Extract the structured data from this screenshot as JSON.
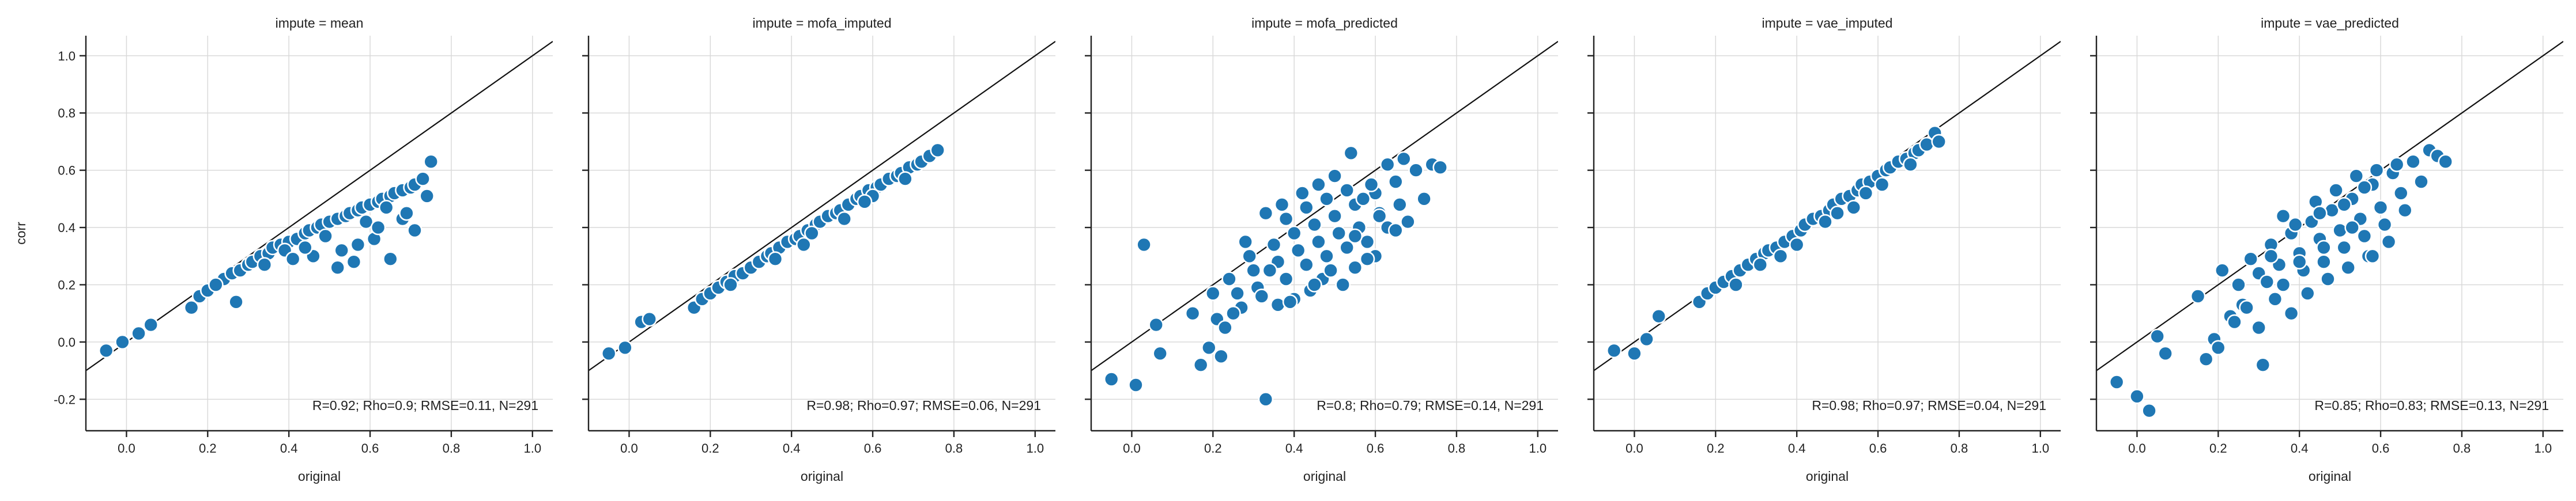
{
  "chart_data": [
    {
      "type": "scatter",
      "title": "impute = mean",
      "xlabel": "original",
      "ylabel": "corr",
      "xlim": [
        -0.1,
        1.05
      ],
      "ylim": [
        -0.31,
        1.07
      ],
      "xticks": [
        "0.0",
        "0.2",
        "0.4",
        "0.6",
        "0.8",
        "1.0"
      ],
      "yticks": [
        "-0.2",
        "0.0",
        "0.2",
        "0.4",
        "0.6",
        "0.8",
        "1.0"
      ],
      "grid": true,
      "identity_line": true,
      "annotation": "R=0.92; Rho=0.9; RMSE=0.11, N=291",
      "series": [
        {
          "color": "#1f77b4",
          "x": [
            -0.05,
            -0.01,
            0.03,
            0.06,
            0.16,
            0.18,
            0.2,
            0.22,
            0.24,
            0.26,
            0.28,
            0.3,
            0.31,
            0.33,
            0.35,
            0.36,
            0.38,
            0.4,
            0.42,
            0.44,
            0.45,
            0.47,
            0.48,
            0.5,
            0.52,
            0.54,
            0.55,
            0.57,
            0.58,
            0.6,
            0.62,
            0.63,
            0.65,
            0.66,
            0.68,
            0.7,
            0.71,
            0.73,
            0.75,
            0.27,
            0.46,
            0.53,
            0.56,
            0.61,
            0.65,
            0.71,
            0.22,
            0.39,
            0.49,
            0.59,
            0.64,
            0.68,
            0.74,
            0.41,
            0.52,
            0.57,
            0.62,
            0.69,
            0.34,
            0.44
          ],
          "y": [
            -0.03,
            0.0,
            0.03,
            0.06,
            0.12,
            0.16,
            0.18,
            0.2,
            0.22,
            0.24,
            0.25,
            0.27,
            0.28,
            0.3,
            0.31,
            0.33,
            0.34,
            0.35,
            0.36,
            0.38,
            0.39,
            0.4,
            0.41,
            0.42,
            0.43,
            0.44,
            0.45,
            0.46,
            0.47,
            0.48,
            0.49,
            0.5,
            0.51,
            0.52,
            0.53,
            0.54,
            0.55,
            0.57,
            0.63,
            0.14,
            0.3,
            0.32,
            0.28,
            0.36,
            0.29,
            0.39,
            0.2,
            0.32,
            0.37,
            0.42,
            0.47,
            0.43,
            0.51,
            0.29,
            0.26,
            0.34,
            0.4,
            0.45,
            0.27,
            0.33
          ]
        }
      ]
    },
    {
      "type": "scatter",
      "title": "impute = mofa_imputed",
      "xlabel": "original",
      "ylabel": "",
      "xlim": [
        -0.1,
        1.05
      ],
      "ylim": [
        -0.31,
        1.07
      ],
      "xticks": [
        "0.0",
        "0.2",
        "0.4",
        "0.6",
        "0.8",
        "1.0"
      ],
      "grid": true,
      "identity_line": true,
      "annotation": "R=0.98; Rho=0.97; RMSE=0.06, N=291",
      "series": [
        {
          "color": "#1f77b4",
          "x": [
            -0.05,
            -0.01,
            0.03,
            0.05,
            0.16,
            0.18,
            0.2,
            0.22,
            0.24,
            0.26,
            0.28,
            0.3,
            0.32,
            0.34,
            0.35,
            0.37,
            0.39,
            0.41,
            0.42,
            0.44,
            0.46,
            0.47,
            0.49,
            0.51,
            0.52,
            0.54,
            0.56,
            0.57,
            0.59,
            0.61,
            0.62,
            0.64,
            0.66,
            0.67,
            0.69,
            0.71,
            0.72,
            0.74,
            0.76,
            0.25,
            0.36,
            0.45,
            0.53,
            0.6,
            0.68,
            0.43,
            0.58
          ],
          "y": [
            -0.04,
            -0.02,
            0.07,
            0.08,
            0.12,
            0.15,
            0.17,
            0.19,
            0.21,
            0.23,
            0.24,
            0.26,
            0.28,
            0.3,
            0.31,
            0.33,
            0.35,
            0.36,
            0.37,
            0.39,
            0.41,
            0.42,
            0.44,
            0.45,
            0.46,
            0.48,
            0.5,
            0.51,
            0.53,
            0.54,
            0.55,
            0.57,
            0.58,
            0.59,
            0.61,
            0.62,
            0.63,
            0.65,
            0.67,
            0.2,
            0.29,
            0.38,
            0.43,
            0.51,
            0.57,
            0.34,
            0.49
          ]
        }
      ]
    },
    {
      "type": "scatter",
      "title": "impute = mofa_predicted",
      "xlabel": "original",
      "ylabel": "",
      "xlim": [
        -0.1,
        1.05
      ],
      "ylim": [
        -0.31,
        1.07
      ],
      "xticks": [
        "0.0",
        "0.2",
        "0.4",
        "0.6",
        "0.8",
        "1.0"
      ],
      "grid": true,
      "identity_line": true,
      "annotation": "R=0.8; Rho=0.79; RMSE=0.14, N=291",
      "series": [
        {
          "color": "#1f77b4",
          "x": [
            -0.05,
            0.01,
            0.03,
            0.06,
            0.07,
            0.15,
            0.17,
            0.19,
            0.2,
            0.21,
            0.22,
            0.24,
            0.26,
            0.27,
            0.29,
            0.3,
            0.31,
            0.33,
            0.35,
            0.36,
            0.38,
            0.4,
            0.41,
            0.43,
            0.45,
            0.46,
            0.48,
            0.5,
            0.51,
            0.53,
            0.55,
            0.56,
            0.58,
            0.6,
            0.61,
            0.63,
            0.65,
            0.66,
            0.68,
            0.7,
            0.72,
            0.74,
            0.76,
            0.33,
            0.36,
            0.4,
            0.44,
            0.47,
            0.52,
            0.55,
            0.6,
            0.63,
            0.67,
            0.37,
            0.42,
            0.46,
            0.5,
            0.54,
            0.57,
            0.61,
            0.65,
            0.28,
            0.32,
            0.38,
            0.43,
            0.48,
            0.53,
            0.58,
            0.25,
            0.34,
            0.39,
            0.45,
            0.49,
            0.55,
            0.59,
            0.23
          ],
          "y": [
            -0.13,
            -0.15,
            0.34,
            0.06,
            -0.04,
            0.1,
            -0.08,
            -0.02,
            0.17,
            0.08,
            -0.05,
            0.22,
            0.17,
            0.12,
            0.3,
            0.25,
            0.19,
            -0.2,
            0.34,
            0.28,
            0.22,
            0.38,
            0.32,
            0.27,
            0.41,
            0.35,
            0.3,
            0.44,
            0.38,
            0.33,
            0.48,
            0.4,
            0.35,
            0.52,
            0.45,
            0.4,
            0.56,
            0.48,
            0.42,
            0.6,
            0.5,
            0.62,
            0.61,
            0.45,
            0.13,
            0.15,
            0.18,
            0.22,
            0.2,
            0.26,
            0.3,
            0.62,
            0.64,
            0.48,
            0.52,
            0.55,
            0.58,
            0.66,
            0.5,
            0.44,
            0.39,
            0.35,
            0.16,
            0.43,
            0.47,
            0.5,
            0.53,
            0.29,
            0.1,
            0.25,
            0.14,
            0.2,
            0.25,
            0.37,
            0.55,
            0.05
          ]
        }
      ]
    },
    {
      "type": "scatter",
      "title": "impute = vae_imputed",
      "xlabel": "original",
      "ylabel": "",
      "xlim": [
        -0.1,
        1.05
      ],
      "ylim": [
        -0.31,
        1.07
      ],
      "xticks": [
        "0.0",
        "0.2",
        "0.4",
        "0.6",
        "0.8",
        "1.0"
      ],
      "grid": true,
      "identity_line": true,
      "annotation": "R=0.98; Rho=0.97; RMSE=0.04, N=291",
      "series": [
        {
          "color": "#1f77b4",
          "x": [
            -0.05,
            0.0,
            0.03,
            0.06,
            0.16,
            0.18,
            0.2,
            0.22,
            0.24,
            0.26,
            0.28,
            0.3,
            0.32,
            0.33,
            0.35,
            0.37,
            0.39,
            0.41,
            0.42,
            0.44,
            0.46,
            0.48,
            0.49,
            0.51,
            0.53,
            0.55,
            0.56,
            0.58,
            0.6,
            0.62,
            0.63,
            0.65,
            0.67,
            0.69,
            0.7,
            0.72,
            0.74,
            0.75,
            0.25,
            0.31,
            0.4,
            0.47,
            0.54,
            0.61,
            0.68,
            0.36,
            0.5,
            0.57
          ],
          "y": [
            -0.03,
            -0.04,
            0.01,
            0.09,
            0.14,
            0.17,
            0.19,
            0.21,
            0.23,
            0.25,
            0.27,
            0.29,
            0.31,
            0.32,
            0.33,
            0.35,
            0.37,
            0.39,
            0.41,
            0.43,
            0.44,
            0.46,
            0.48,
            0.5,
            0.51,
            0.53,
            0.55,
            0.56,
            0.58,
            0.6,
            0.61,
            0.63,
            0.64,
            0.66,
            0.67,
            0.69,
            0.73,
            0.7,
            0.2,
            0.27,
            0.34,
            0.42,
            0.47,
            0.55,
            0.62,
            0.3,
            0.45,
            0.52
          ]
        }
      ]
    },
    {
      "type": "scatter",
      "title": "impute = vae_predicted",
      "xlabel": "original",
      "ylabel": "",
      "xlim": [
        -0.1,
        1.05
      ],
      "ylim": [
        -0.31,
        1.07
      ],
      "xticks": [
        "0.0",
        "0.2",
        "0.4",
        "0.6",
        "0.8",
        "1.0"
      ],
      "grid": true,
      "identity_line": true,
      "annotation": "R=0.85; Rho=0.83; RMSE=0.13, N=291",
      "series": [
        {
          "color": "#1f77b4",
          "x": [
            -0.05,
            0.0,
            0.03,
            0.05,
            0.07,
            0.15,
            0.17,
            0.19,
            0.2,
            0.21,
            0.23,
            0.25,
            0.26,
            0.28,
            0.3,
            0.31,
            0.33,
            0.35,
            0.36,
            0.38,
            0.4,
            0.41,
            0.43,
            0.45,
            0.46,
            0.48,
            0.5,
            0.51,
            0.53,
            0.55,
            0.56,
            0.58,
            0.6,
            0.61,
            0.63,
            0.65,
            0.66,
            0.68,
            0.7,
            0.72,
            0.74,
            0.76,
            0.3,
            0.34,
            0.38,
            0.42,
            0.47,
            0.52,
            0.57,
            0.62,
            0.36,
            0.44,
            0.49,
            0.54,
            0.59,
            0.64,
            0.27,
            0.33,
            0.39,
            0.45,
            0.51,
            0.56,
            0.24,
            0.32,
            0.4,
            0.46,
            0.53,
            0.58
          ],
          "y": [
            -0.14,
            -0.19,
            -0.24,
            0.02,
            -0.04,
            0.16,
            -0.06,
            0.01,
            -0.02,
            0.25,
            0.09,
            0.2,
            0.13,
            0.29,
            0.24,
            -0.08,
            0.34,
            0.27,
            0.2,
            0.38,
            0.31,
            0.25,
            0.42,
            0.36,
            0.28,
            0.46,
            0.39,
            0.33,
            0.5,
            0.43,
            0.37,
            0.55,
            0.47,
            0.41,
            0.59,
            0.52,
            0.46,
            0.63,
            0.56,
            0.67,
            0.65,
            0.63,
            0.05,
            0.15,
            0.1,
            0.17,
            0.22,
            0.26,
            0.3,
            0.35,
            0.44,
            0.49,
            0.53,
            0.58,
            0.6,
            0.62,
            0.12,
            0.3,
            0.41,
            0.45,
            0.48,
            0.54,
            0.07,
            0.21,
            0.28,
            0.33,
            0.4,
            0.3
          ]
        }
      ]
    }
  ]
}
